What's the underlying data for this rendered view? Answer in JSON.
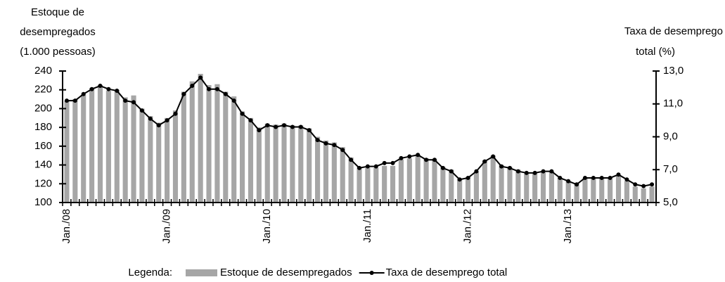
{
  "chart_data": {
    "type": "bar",
    "y_label": [
      "Estoque de",
      "desempregados",
      "(1.000 pessoas)"
    ],
    "y2_label": [
      "Taxa de desemprego",
      "total (%)"
    ],
    "legend_title": "Legenda:",
    "categories": [
      "Jan./08",
      null,
      null,
      null,
      null,
      null,
      null,
      null,
      null,
      null,
      null,
      null,
      "Jan./09",
      null,
      null,
      null,
      null,
      null,
      null,
      null,
      null,
      null,
      null,
      null,
      "Jan./10",
      null,
      null,
      null,
      null,
      null,
      null,
      null,
      null,
      null,
      null,
      null,
      "Jan./11",
      null,
      null,
      null,
      null,
      null,
      null,
      null,
      null,
      null,
      null,
      null,
      "Jan./12",
      null,
      null,
      null,
      null,
      null,
      null,
      null,
      null,
      null,
      null,
      null,
      "Jan./13",
      null,
      null,
      null,
      null,
      null,
      null,
      null,
      null,
      null,
      null
    ],
    "series": [
      {
        "name": "Estoque de desempregados",
        "type": "bar",
        "color": "#a6a6a6",
        "values": [
          208,
          210,
          215,
          222,
          225,
          219,
          220,
          212,
          214,
          200,
          192,
          185,
          190,
          198,
          218,
          229,
          237,
          225,
          226,
          218,
          213,
          197,
          190,
          180,
          184,
          183,
          184,
          182,
          182,
          179,
          170,
          166,
          164,
          159,
          148,
          138,
          137,
          137,
          139,
          139,
          146,
          147,
          151,
          147,
          146,
          138,
          135,
          125,
          127,
          133,
          145,
          150,
          140,
          138,
          135,
          131,
          131,
          132,
          133,
          126,
          123,
          120,
          126,
          126,
          126,
          126,
          128,
          123,
          117,
          115,
          117
        ]
      },
      {
        "name": "Taxa de desemprego total",
        "type": "line",
        "axis": "y2",
        "color": "#000000",
        "values": [
          11.2,
          11.2,
          11.6,
          11.9,
          12.1,
          11.9,
          11.8,
          11.2,
          11.1,
          10.6,
          10.1,
          9.7,
          10.0,
          10.4,
          11.6,
          12.1,
          12.6,
          11.9,
          11.9,
          11.6,
          11.2,
          10.4,
          10.0,
          9.4,
          9.7,
          9.6,
          9.7,
          9.6,
          9.6,
          9.4,
          8.8,
          8.6,
          8.5,
          8.2,
          7.6,
          7.1,
          7.2,
          7.2,
          7.4,
          7.4,
          7.7,
          7.8,
          7.9,
          7.6,
          7.6,
          7.1,
          6.9,
          6.4,
          6.5,
          6.9,
          7.5,
          7.8,
          7.2,
          7.1,
          6.9,
          6.8,
          6.8,
          6.9,
          6.9,
          6.5,
          6.3,
          6.1,
          6.5,
          6.5,
          6.5,
          6.5,
          6.7,
          6.4,
          6.1,
          6.0,
          6.1
        ]
      }
    ],
    "ylim": [
      100,
      240
    ],
    "yticks": [
      100,
      120,
      140,
      160,
      180,
      200,
      220,
      240
    ],
    "y2lim": [
      5,
      13
    ],
    "y2ticks": [
      {
        "value": 5,
        "label": "5,0"
      },
      {
        "value": 7,
        "label": "7,0"
      },
      {
        "value": 9,
        "label": "9,0"
      },
      {
        "value": 11,
        "label": "11,0"
      },
      {
        "value": 13,
        "label": "13,0"
      }
    ],
    "grid": false
  }
}
